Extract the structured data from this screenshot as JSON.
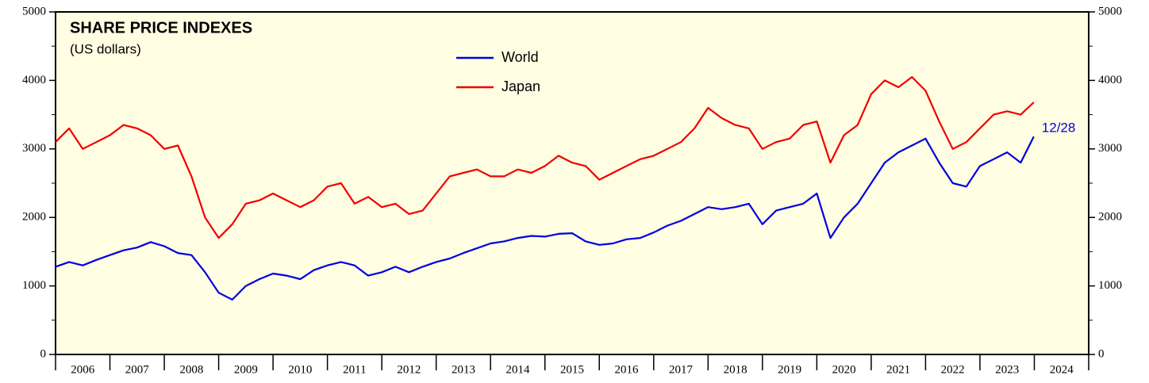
{
  "chart_data": {
    "type": "line",
    "title": "SHARE PRICE INDEXES",
    "subtitle": "(US dollars)",
    "annotation": "12/28",
    "xlim": [
      2006,
      2025
    ],
    "xticks": [
      {
        "value": 2006.5,
        "label": "2006"
      },
      {
        "value": 2007.5,
        "label": "2007"
      },
      {
        "value": 2008.5,
        "label": "2008"
      },
      {
        "value": 2009.5,
        "label": "2009"
      },
      {
        "value": 2010.5,
        "label": "2010"
      },
      {
        "value": 2011.5,
        "label": "2011"
      },
      {
        "value": 2012.5,
        "label": "2012"
      },
      {
        "value": 2013.5,
        "label": "2013"
      },
      {
        "value": 2014.5,
        "label": "2014"
      },
      {
        "value": 2015.5,
        "label": "2015"
      },
      {
        "value": 2016.5,
        "label": "2016"
      },
      {
        "value": 2017.5,
        "label": "2017"
      },
      {
        "value": 2018.5,
        "label": "2018"
      },
      {
        "value": 2019.5,
        "label": "2019"
      },
      {
        "value": 2020.5,
        "label": "2020"
      },
      {
        "value": 2021.5,
        "label": "2021"
      },
      {
        "value": 2022.5,
        "label": "2022"
      },
      {
        "value": 2023.5,
        "label": "2023"
      },
      {
        "value": 2024.5,
        "label": "2024"
      }
    ],
    "ylim": [
      0,
      5000
    ],
    "yticks": [
      0,
      1000,
      2000,
      3000,
      4000,
      5000
    ],
    "x": [
      2006,
      2006.25,
      2006.5,
      2006.75,
      2007,
      2007.25,
      2007.5,
      2007.75,
      2008,
      2008.25,
      2008.5,
      2008.75,
      2009,
      2009.25,
      2009.5,
      2009.75,
      2010,
      2010.25,
      2010.5,
      2010.75,
      2011,
      2011.25,
      2011.5,
      2011.75,
      2012,
      2012.25,
      2012.5,
      2012.75,
      2013,
      2013.25,
      2013.5,
      2013.75,
      2014,
      2014.25,
      2014.5,
      2014.75,
      2015,
      2015.25,
      2015.5,
      2015.75,
      2016,
      2016.25,
      2016.5,
      2016.75,
      2017,
      2017.25,
      2017.5,
      2017.75,
      2018,
      2018.25,
      2018.5,
      2018.75,
      2019,
      2019.25,
      2019.5,
      2019.75,
      2020,
      2020.25,
      2020.5,
      2020.75,
      2021,
      2021.25,
      2021.5,
      2021.75,
      2022,
      2022.25,
      2022.5,
      2022.75,
      2023,
      2023.25,
      2023.5,
      2023.75,
      2023.99
    ],
    "series": [
      {
        "name": "World",
        "color": "#0000e0",
        "values": [
          1280,
          1350,
          1300,
          1380,
          1450,
          1520,
          1560,
          1640,
          1580,
          1480,
          1450,
          1200,
          900,
          800,
          1000,
          1100,
          1180,
          1150,
          1100,
          1230,
          1300,
          1350,
          1300,
          1150,
          1200,
          1280,
          1200,
          1280,
          1350,
          1400,
          1480,
          1550,
          1620,
          1650,
          1700,
          1730,
          1720,
          1760,
          1770,
          1650,
          1600,
          1620,
          1680,
          1700,
          1780,
          1880,
          1950,
          2050,
          2150,
          2120,
          2150,
          2200,
          1900,
          2100,
          2150,
          2200,
          2350,
          1700,
          2000,
          2200,
          2500,
          2800,
          2950,
          3050,
          3150,
          2800,
          2500,
          2450,
          2750,
          2850,
          2950,
          2800,
          3180
        ]
      },
      {
        "name": "Japan",
        "color": "#f00000",
        "values": [
          3100,
          3300,
          3000,
          3100,
          3200,
          3350,
          3300,
          3200,
          3000,
          3050,
          2600,
          2000,
          1700,
          1900,
          2200,
          2250,
          2350,
          2250,
          2150,
          2250,
          2450,
          2500,
          2200,
          2300,
          2150,
          2200,
          2050,
          2100,
          2350,
          2600,
          2650,
          2700,
          2600,
          2600,
          2700,
          2650,
          2750,
          2900,
          2800,
          2750,
          2550,
          2650,
          2750,
          2850,
          2900,
          3000,
          3100,
          3300,
          3600,
          3450,
          3350,
          3300,
          3000,
          3100,
          3150,
          3350,
          3400,
          2800,
          3200,
          3350,
          3800,
          4000,
          3900,
          4050,
          3850,
          3400,
          3000,
          3100,
          3300,
          3500,
          3550,
          3500,
          3680
        ]
      }
    ]
  }
}
